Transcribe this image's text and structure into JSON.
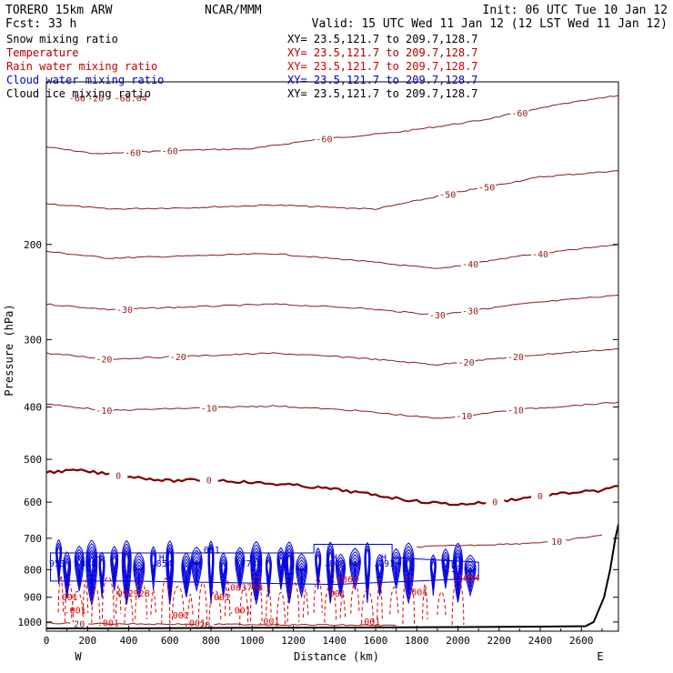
{
  "header": {
    "model": "TORERO  15km ARW",
    "center": "NCAR/MMM",
    "init": "Init: 06 UTC Tue 10 Jan 12",
    "fcst": "Fcst:   33 h",
    "valid": "Valid: 15 UTC Wed 11 Jan 12 (12 LST Wed 11 Jan 12)"
  },
  "fields": [
    {
      "label": "Snow mixing ratio",
      "xy": "XY=  23.5,121.7 to 209.7,128.7",
      "color": "#000000",
      "xy_color": "#000000"
    },
    {
      "label": "Temperature",
      "xy": "XY=  23.5,121.7 to 209.7,128.7",
      "color": "#aa0000",
      "xy_color": "#aa0000"
    },
    {
      "label": "Rain water mixing ratio",
      "xy": "XY=  23.5,121.7 to 209.7,128.7",
      "color": "#cc0000",
      "xy_color": "#cc0000"
    },
    {
      "label": "Cloud water mixing ratio",
      "xy": "XY=  23.5,121.7 to 209.7,128.7",
      "color": "#0000cc",
      "xy_color": "#0000cc"
    },
    {
      "label": "Cloud ice mixing ratio",
      "xy": "XY=  23.5,121.7 to 209.7,128.7",
      "color": "#000000",
      "xy_color": "#000000"
    }
  ],
  "colors": {
    "temperature": "#8b1a1a",
    "freezing_line": "#800000",
    "rain": "#dd0000",
    "cloud_water": "#0000dd",
    "terrain": "#000000"
  },
  "chart_data": {
    "type": "cross-section",
    "xlabel": "Distance (km)",
    "ylabel": "Pressure (hPa)",
    "xlim": [
      0,
      2780
    ],
    "ylim": [
      1040,
      100
    ],
    "y_scale": "log",
    "grid": false,
    "x_ticks": [
      0,
      200,
      400,
      600,
      800,
      1000,
      1200,
      1400,
      1600,
      1800,
      2000,
      2200,
      2400,
      2600
    ],
    "x_tick_labels": [
      "0",
      "200",
      "400",
      "600",
      "800",
      "1000",
      "1200",
      "1400",
      "1600",
      "1800",
      "2000",
      "2200",
      "2400",
      "2600"
    ],
    "y_ticks": [
      200,
      300,
      400,
      500,
      600,
      700,
      800,
      900,
      1000
    ],
    "y_tick_labels": [
      "200",
      "300",
      "400",
      "500",
      "600",
      "700",
      "800",
      "900",
      "1000"
    ],
    "endpoints": {
      "left": "W",
      "right": "E"
    },
    "temperature_isotherms": [
      {
        "value": -60,
        "points": [
          [
            0,
            132
          ],
          [
            250,
            136
          ],
          [
            600,
            134
          ],
          [
            1000,
            133
          ],
          [
            1300,
            128
          ],
          [
            1700,
            124
          ],
          [
            2100,
            118
          ],
          [
            2500,
            110
          ],
          [
            2780,
            106
          ]
        ],
        "labels": [
          {
            "x": 420,
            "text": "-60"
          },
          {
            "x": 600,
            "text": "-60"
          },
          {
            "x": 1350,
            "text": "-60"
          },
          {
            "x": 2300,
            "text": "-60"
          }
        ]
      },
      {
        "value": -50,
        "points": [
          [
            0,
            168
          ],
          [
            300,
            172
          ],
          [
            700,
            171
          ],
          [
            1100,
            169
          ],
          [
            1600,
            172
          ],
          [
            2000,
            160
          ],
          [
            2400,
            150
          ],
          [
            2780,
            146
          ]
        ],
        "labels": [
          {
            "x": 1950,
            "text": "-50"
          },
          {
            "x": 2140,
            "text": "-50"
          }
        ]
      },
      {
        "value": -40,
        "points": [
          [
            0,
            206
          ],
          [
            300,
            212
          ],
          [
            700,
            210
          ],
          [
            1100,
            208
          ],
          [
            1500,
            214
          ],
          [
            1900,
            222
          ],
          [
            2300,
            210
          ],
          [
            2780,
            200
          ]
        ],
        "labels": [
          {
            "x": 2060,
            "text": "-40"
          },
          {
            "x": 2400,
            "text": "-40"
          }
        ]
      },
      {
        "value": -30,
        "points": [
          [
            0,
            258
          ],
          [
            300,
            264
          ],
          [
            700,
            261
          ],
          [
            1100,
            258
          ],
          [
            1500,
            262
          ],
          [
            1900,
            270
          ],
          [
            2300,
            258
          ],
          [
            2780,
            248
          ]
        ],
        "labels": [
          {
            "x": 380,
            "text": "-30"
          },
          {
            "x": 1900,
            "text": "-30"
          },
          {
            "x": 2060,
            "text": "-30"
          }
        ]
      },
      {
        "value": -20,
        "points": [
          [
            0,
            318
          ],
          [
            300,
            326
          ],
          [
            700,
            322
          ],
          [
            1100,
            318
          ],
          [
            1500,
            324
          ],
          [
            1900,
            334
          ],
          [
            2300,
            322
          ],
          [
            2780,
            312
          ]
        ],
        "labels": [
          {
            "x": 280,
            "text": "-20"
          },
          {
            "x": 640,
            "text": "-20"
          },
          {
            "x": 2040,
            "text": "-20"
          },
          {
            "x": 2280,
            "text": "-20"
          }
        ]
      },
      {
        "value": -10,
        "points": [
          [
            0,
            395
          ],
          [
            300,
            406
          ],
          [
            700,
            402
          ],
          [
            1100,
            398
          ],
          [
            1500,
            406
          ],
          [
            1900,
            420
          ],
          [
            2300,
            404
          ],
          [
            2780,
            392
          ]
        ],
        "labels": [
          {
            "x": 280,
            "text": "-10"
          },
          {
            "x": 790,
            "text": "-10"
          },
          {
            "x": 2030,
            "text": "-10"
          },
          {
            "x": 2280,
            "text": "-10"
          }
        ]
      },
      {
        "value": 0,
        "points": [
          [
            0,
            528
          ],
          [
            150,
            524
          ],
          [
            350,
            535
          ],
          [
            600,
            548
          ],
          [
            800,
            545
          ],
          [
            1000,
            552
          ],
          [
            1200,
            558
          ],
          [
            1400,
            568
          ],
          [
            1600,
            582
          ],
          [
            1800,
            598
          ],
          [
            2000,
            606
          ],
          [
            2200,
            598
          ],
          [
            2400,
            584
          ],
          [
            2600,
            574
          ],
          [
            2700,
            572
          ],
          [
            2780,
            560
          ]
        ],
        "labels": [
          {
            "x": 350,
            "text": "0"
          },
          {
            "x": 790,
            "text": "0"
          },
          {
            "x": 2180,
            "text": "0"
          },
          {
            "x": 2400,
            "text": "0"
          }
        ]
      },
      {
        "value": 10,
        "points": [
          [
            1800,
            726
          ],
          [
            2000,
            722
          ],
          [
            2300,
            716
          ],
          [
            2500,
            708
          ],
          [
            2700,
            690
          ]
        ],
        "labels": [
          {
            "x": 2480,
            "text": "10"
          }
        ]
      },
      {
        "value": 20,
        "points": [
          [
            0,
            1005
          ],
          [
            400,
            1008
          ],
          [
            800,
            1010
          ],
          [
            1200,
            1012
          ],
          [
            1700,
            1015
          ]
        ],
        "labels": [
          {
            "x": 160,
            "text": "20"
          },
          {
            "x": 770,
            "text": "20"
          }
        ]
      }
    ],
    "max_labels": [
      {
        "x": 330,
        "p": 113,
        "text": "-68.04"
      },
      {
        "x": 110,
        "p": 113,
        "text": "-60"
      },
      {
        "x": 200,
        "p": 113,
        "text": "-20"
      }
    ],
    "cloud_water_region": {
      "x_start": 20,
      "x_end": 2100,
      "p_top": 700,
      "p_bottom": 930
    },
    "cloud_water_labels": [
      {
        "x": 40,
        "p": 790,
        "text": ".953"
      },
      {
        "x": 190,
        "p": 790,
        "text": ".888"
      },
      {
        "x": 560,
        "p": 790,
        "text": ".854"
      },
      {
        "x": 970,
        "p": 790,
        "text": ".778"
      },
      {
        "x": 1400,
        "p": 790,
        "text": ".806"
      },
      {
        "x": 1640,
        "p": 790,
        "text": ".791"
      },
      {
        "x": 1980,
        "p": 808,
        "text": ".53"
      },
      {
        "x": 790,
        "p": 745,
        "text": ".001"
      }
    ],
    "cloud_highs": [
      {
        "x": 150,
        "p": 770,
        "text": "H"
      },
      {
        "x": 250,
        "p": 770,
        "text": "H"
      },
      {
        "x": 560,
        "p": 770,
        "text": "H"
      },
      {
        "x": 1000,
        "p": 770,
        "text": "H"
      },
      {
        "x": 1400,
        "p": 770,
        "text": "H"
      },
      {
        "x": 1640,
        "p": 770,
        "text": "H"
      },
      {
        "x": 1980,
        "p": 792,
        "text": "H"
      }
    ],
    "rain_labels": [
      {
        "x": 100,
        "p": 912,
        "text": ".001"
      },
      {
        "x": 410,
        "p": 898,
        "text": ".092928"
      },
      {
        "x": 960,
        "p": 875,
        "text": ".083733"
      },
      {
        "x": 840,
        "p": 912,
        "text": ".001"
      },
      {
        "x": 1400,
        "p": 898,
        "text": ".001"
      },
      {
        "x": 1800,
        "p": 893,
        "text": ".001"
      },
      {
        "x": 1450,
        "p": 845,
        "text": ".1864"
      },
      {
        "x": 2040,
        "p": 840,
        "text": ".1084"
      },
      {
        "x": 140,
        "p": 965,
        "text": ".001"
      },
      {
        "x": 940,
        "p": 965,
        "text": ".001"
      },
      {
        "x": 640,
        "p": 985,
        "text": ".001"
      },
      {
        "x": 1080,
        "p": 1010,
        "text": ".001"
      },
      {
        "x": 1570,
        "p": 1012,
        "text": ".001"
      },
      {
        "x": 300,
        "p": 1018,
        "text": ".001"
      },
      {
        "x": 720,
        "p": 1018,
        "text": ".001"
      }
    ],
    "terrain": [
      [
        0,
        1028
      ],
      [
        500,
        1027
      ],
      [
        1000,
        1025
      ],
      [
        1500,
        1024
      ],
      [
        2000,
        1022
      ],
      [
        2400,
        1020
      ],
      [
        2620,
        1018
      ],
      [
        2660,
        1000
      ],
      [
        2710,
        900
      ],
      [
        2740,
        800
      ],
      [
        2765,
        700
      ],
      [
        2780,
        660
      ]
    ]
  }
}
